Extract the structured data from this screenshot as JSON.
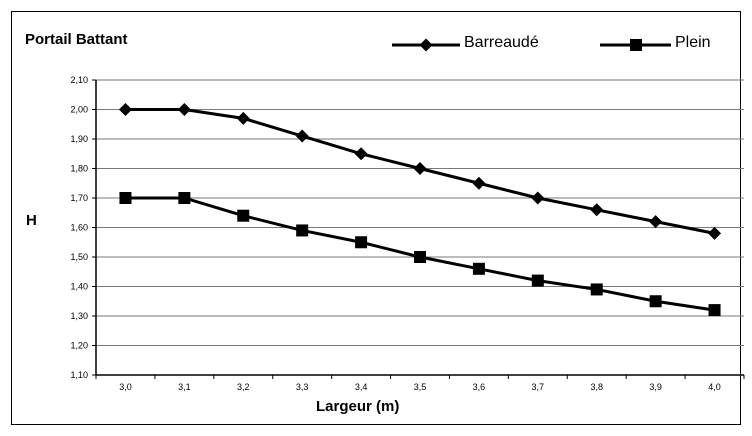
{
  "chart_data": {
    "type": "line",
    "title": "Portail Battant",
    "xlabel": "Largeur (m)",
    "ylabel": "H",
    "categories": [
      "3,0",
      "3,1",
      "3,2",
      "3,3",
      "3,4",
      "3,5",
      "3,6",
      "3,7",
      "3,8",
      "3,9",
      "4,0"
    ],
    "y_ticks": [
      "1,10",
      "1,20",
      "1,30",
      "1,40",
      "1,50",
      "1,60",
      "1,70",
      "1,80",
      "1,90",
      "2,00",
      "2,10"
    ],
    "ylim": [
      1.1,
      2.1
    ],
    "grid": true,
    "legend_position": "top-right",
    "series": [
      {
        "name": "Barreaudé",
        "marker": "diamond",
        "color": "#000000",
        "values": [
          2.0,
          2.0,
          1.97,
          1.91,
          1.85,
          1.8,
          1.75,
          1.7,
          1.66,
          1.62,
          1.58
        ]
      },
      {
        "name": "Plein",
        "marker": "square",
        "color": "#000000",
        "values": [
          1.7,
          1.7,
          1.64,
          1.59,
          1.55,
          1.5,
          1.46,
          1.42,
          1.39,
          1.35,
          1.32
        ]
      }
    ]
  }
}
